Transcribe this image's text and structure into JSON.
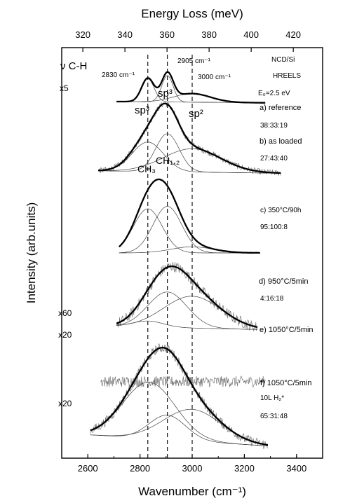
{
  "chart_data": {
    "type": "line",
    "title": "",
    "xlabel": "Wavenumber (cm⁻¹)",
    "xlabel_top": "Energy Loss (meV)",
    "ylabel": "Intensity (arb.units)",
    "xlim": [
      2500,
      3500
    ],
    "x_ticks": [
      2600,
      2800,
      3000,
      3200,
      3400
    ],
    "x_ticks_top_meV": [
      320,
      340,
      360,
      380,
      400,
      420
    ],
    "mev_to_wavenumber": 8.0655,
    "vertical_lines_x": [
      2830,
      2905,
      3000
    ],
    "offsets": [
      5.6,
      4.45,
      3.15,
      1.9,
      1.05,
      0.0
    ],
    "y_range": [
      -0.2,
      6.5
    ],
    "spectra": [
      {
        "label": "a) reference",
        "ratio": "38:33:19",
        "multiplier": "x5",
        "x_range": [
          2710,
          3280
        ],
        "noise": 0.012,
        "baseline": [
          0.02,
          0.0
        ],
        "peaks": [
          {
            "center": 2830,
            "height": 0.38,
            "width": 24
          },
          {
            "center": 2905,
            "height": 0.43,
            "width": 22
          },
          {
            "center": 3000,
            "height": 0.14,
            "width": 70
          }
        ]
      },
      {
        "label": "b) as loaded",
        "ratio": "27:43:40",
        "multiplier": "",
        "x_range": [
          2640,
          3340
        ],
        "noise": 0.05,
        "baseline": [
          0.04,
          0.0
        ],
        "peaks": [
          {
            "center": 2830,
            "height": 0.48,
            "width": 60
          },
          {
            "center": 2905,
            "height": 0.62,
            "width": 45
          },
          {
            "center": 3000,
            "height": 0.38,
            "width": 110
          }
        ]
      },
      {
        "label": "c) 350°C/90h",
        "ratio": "95:100:8",
        "multiplier": "",
        "x_range": [
          2720,
          3260
        ],
        "noise": 0.015,
        "baseline": [
          0.0,
          0.0
        ],
        "peaks": [
          {
            "center": 2830,
            "height": 0.72,
            "width": 55
          },
          {
            "center": 2905,
            "height": 0.76,
            "width": 55
          },
          {
            "center": 3000,
            "height": 0.1,
            "width": 80
          }
        ]
      },
      {
        "label": "d) 950°C/5min",
        "ratio": "4:16:18",
        "multiplier": "x60",
        "x_range": [
          2710,
          3250
        ],
        "noise": 0.09,
        "baseline": [
          0.05,
          0.0
        ],
        "peaks": [
          {
            "center": 2830,
            "height": 0.1,
            "width": 60
          },
          {
            "center": 2905,
            "height": 0.58,
            "width": 75
          },
          {
            "center": 3000,
            "height": 0.52,
            "width": 110
          }
        ]
      },
      {
        "label": "e) 1050°C/5min",
        "ratio": "",
        "multiplier": "x20",
        "x_range": [
          2650,
          3280
        ],
        "noise": 0.09,
        "baseline": [
          0.0,
          0.0
        ],
        "peaks": []
      },
      {
        "label": "f) 1050°C/5min",
        "sub_label": "10L H₂*",
        "ratio": "65:31:48",
        "multiplier": "x20",
        "x_range": [
          2610,
          3290
        ],
        "noise": 0.08,
        "baseline": [
          0.18,
          0.0
        ],
        "peaks": [
          {
            "center": 2835,
            "height": 0.92,
            "width": 100
          },
          {
            "center": 2905,
            "height": 0.4,
            "width": 70
          },
          {
            "center": 3000,
            "height": 0.52,
            "width": 110
          }
        ]
      }
    ],
    "annotations": {
      "nu_ch": "ν C-H",
      "wn_2830": "2830 cm⁻¹",
      "wn_2905": "2905 cm⁻¹",
      "wn_3000": "3000 cm⁻¹",
      "sample": "NCD/Si",
      "method": "HREELS",
      "energy": "E₀=2.5 eV",
      "sp3_top": "sp³",
      "sp3_left": "sp³",
      "sp2": "sp²",
      "ch3": "CH₃",
      "ch12": "CH₁,₂"
    }
  }
}
